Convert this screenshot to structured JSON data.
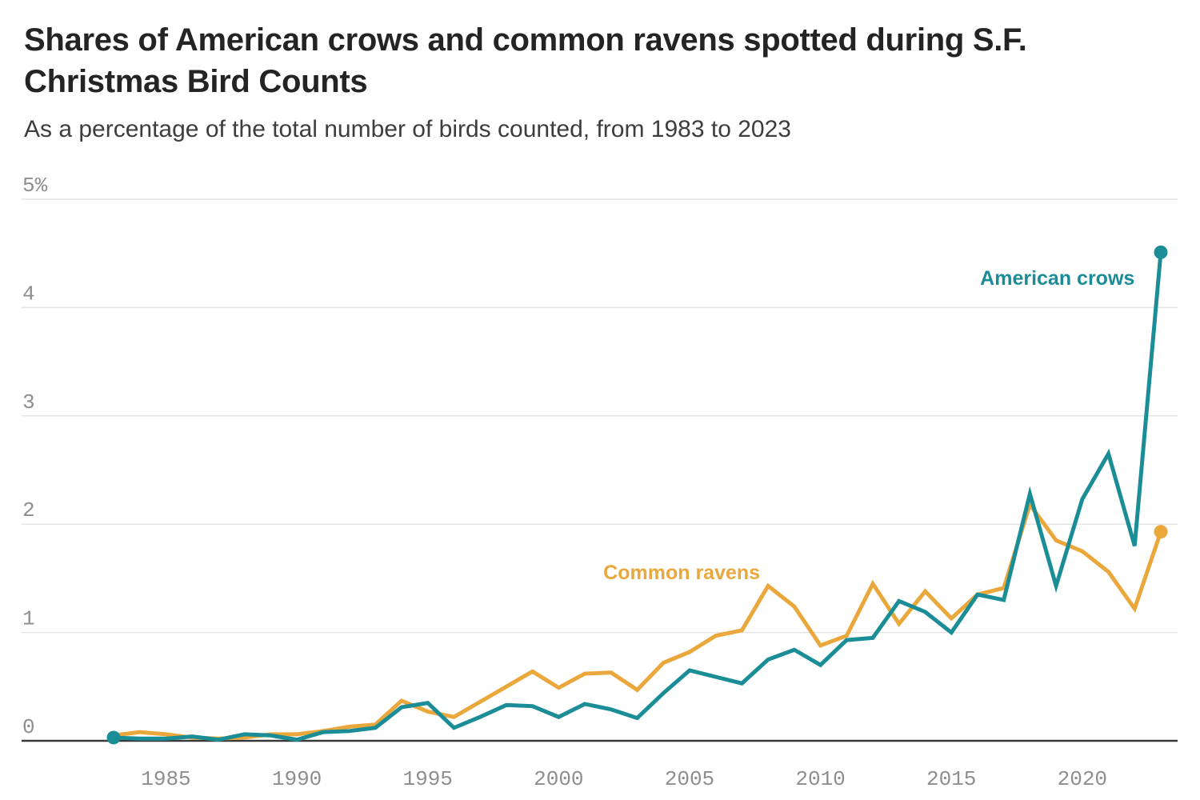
{
  "header": {
    "title": "Shares of American crows and common ravens spotted during S.F. Christmas Bird Counts",
    "subtitle": "As a percentage of the total number of birds counted, from 1983 to 2023"
  },
  "colors": {
    "crows": "#1B8D97",
    "ravens": "#EAA83C",
    "grid": "#E4E4E4",
    "axis": "#383838",
    "tick_label": "#8E8E8E",
    "title": "#242424",
    "subtitle": "#3D3D3D",
    "background": "#FFFFFF"
  },
  "chart_data": {
    "type": "line",
    "title": "Shares of American crows and common ravens spotted during S.F. Christmas Bird Counts",
    "subtitle": "As a percentage of the total number of birds counted, from 1983 to 2023",
    "x": [
      1983,
      1984,
      1985,
      1986,
      1987,
      1988,
      1989,
      1990,
      1991,
      1992,
      1993,
      1994,
      1995,
      1996,
      1997,
      1998,
      1999,
      2000,
      2001,
      2002,
      2003,
      2004,
      2005,
      2006,
      2007,
      2008,
      2009,
      2010,
      2011,
      2012,
      2013,
      2014,
      2015,
      2016,
      2017,
      2018,
      2019,
      2020,
      2021,
      2022,
      2023
    ],
    "series": [
      {
        "name": "Common ravens",
        "color_key": "ravens",
        "start_dot": false,
        "end_dot": true,
        "values": [
          0.05,
          0.08,
          0.06,
          0.03,
          0.02,
          0.03,
          0.06,
          0.06,
          0.09,
          0.13,
          0.15,
          0.37,
          0.27,
          0.22,
          0.36,
          0.5,
          0.64,
          0.49,
          0.62,
          0.63,
          0.47,
          0.72,
          0.82,
          0.97,
          1.02,
          1.43,
          1.24,
          0.88,
          0.97,
          1.45,
          1.08,
          1.38,
          1.13,
          1.35,
          1.41,
          2.18,
          1.85,
          1.75,
          1.56,
          1.22,
          1.93
        ]
      },
      {
        "name": "American crows",
        "color_key": "crows",
        "start_dot": true,
        "end_dot": true,
        "values": [
          0.03,
          0.02,
          0.02,
          0.04,
          0.01,
          0.06,
          0.05,
          0.01,
          0.08,
          0.09,
          0.12,
          0.31,
          0.35,
          0.12,
          0.22,
          0.33,
          0.32,
          0.22,
          0.34,
          0.29,
          0.21,
          0.44,
          0.65,
          0.59,
          0.53,
          0.75,
          0.84,
          0.7,
          0.93,
          0.95,
          1.29,
          1.19,
          1.0,
          1.35,
          1.3,
          2.28,
          1.43,
          2.23,
          2.65,
          1.8,
          4.51
        ]
      }
    ],
    "annotations": [
      {
        "text": "American crows",
        "year": 2019.05,
        "value": 4.26,
        "color_key": "crows",
        "name": "label-american-crows"
      },
      {
        "text": "Common ravens",
        "year": 2004.7,
        "value": 1.54,
        "color_key": "ravens",
        "name": "label-common-ravens"
      }
    ],
    "x_ticks": [
      1985,
      1990,
      1995,
      2000,
      2005,
      2010,
      2015,
      2020
    ],
    "y_ticks": [
      0,
      1,
      2,
      3,
      4,
      5
    ],
    "y_tick_labels": [
      "0",
      "1",
      "2",
      "3",
      "4",
      "5%"
    ],
    "xlim": [
      1983,
      2023
    ],
    "ylim": [
      0,
      5
    ],
    "xlabel": "",
    "ylabel": "",
    "grid": "horizontal",
    "legend_position": "inline-labels"
  }
}
